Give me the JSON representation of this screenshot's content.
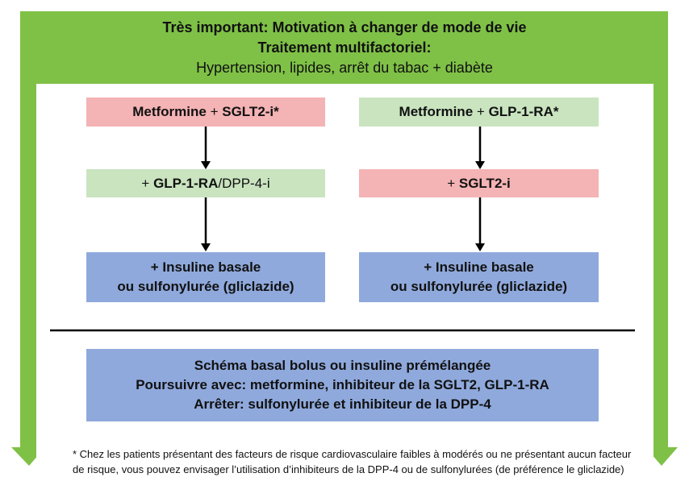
{
  "header": {
    "line1": "Très important: Motivation à changer de mode de vie",
    "line2": "Traitement multifactoriel:",
    "line3": "Hypertension, lipides, arrêt du tabac + diabète"
  },
  "left": {
    "step1_a": "Metformine",
    "step1_plus": "+",
    "step1_b": "SGLT2-i*",
    "step2_plus": "+",
    "step2_a": "GLP-1-RA",
    "step2_b": "/DPP-4-i",
    "step3_line1": "+ Insuline basale",
    "step3_line2": "ou sulfonylurée (gliclazide)"
  },
  "right": {
    "step1_a": "Metformine",
    "step1_plus": "+",
    "step1_b": "GLP-1-RA*",
    "step2_plus": "+",
    "step2_a": "SGLT2-i",
    "step3_line1": "+ Insuline basale",
    "step3_line2": "ou sulfonylurée (gliclazide)"
  },
  "bottom": {
    "line1": "Schéma basal bolus ou insuline prémélangée",
    "line2": "Poursuivre avec: metformine, inhibiteur de la SGLT2, GLP-1-RA",
    "line3": "Arrêter: sulfonylurée et inhibiteur de la DPP-4"
  },
  "footnote": {
    "text": "*  Chez les patients présentant des facteurs de risque cardiovasculaire faibles à modérés ou ne présentant aucun facteur de risque, vous pouvez envisager l’utilisation d’inhibiteurs de la DPP-4 ou de sulfonylurées (de préférence le gliclazide)"
  },
  "colors": {
    "frame_green": "#7fc146",
    "pink": "#f4b3b4",
    "light_green": "#c9e4bf",
    "blue": "#8fa9dc"
  }
}
